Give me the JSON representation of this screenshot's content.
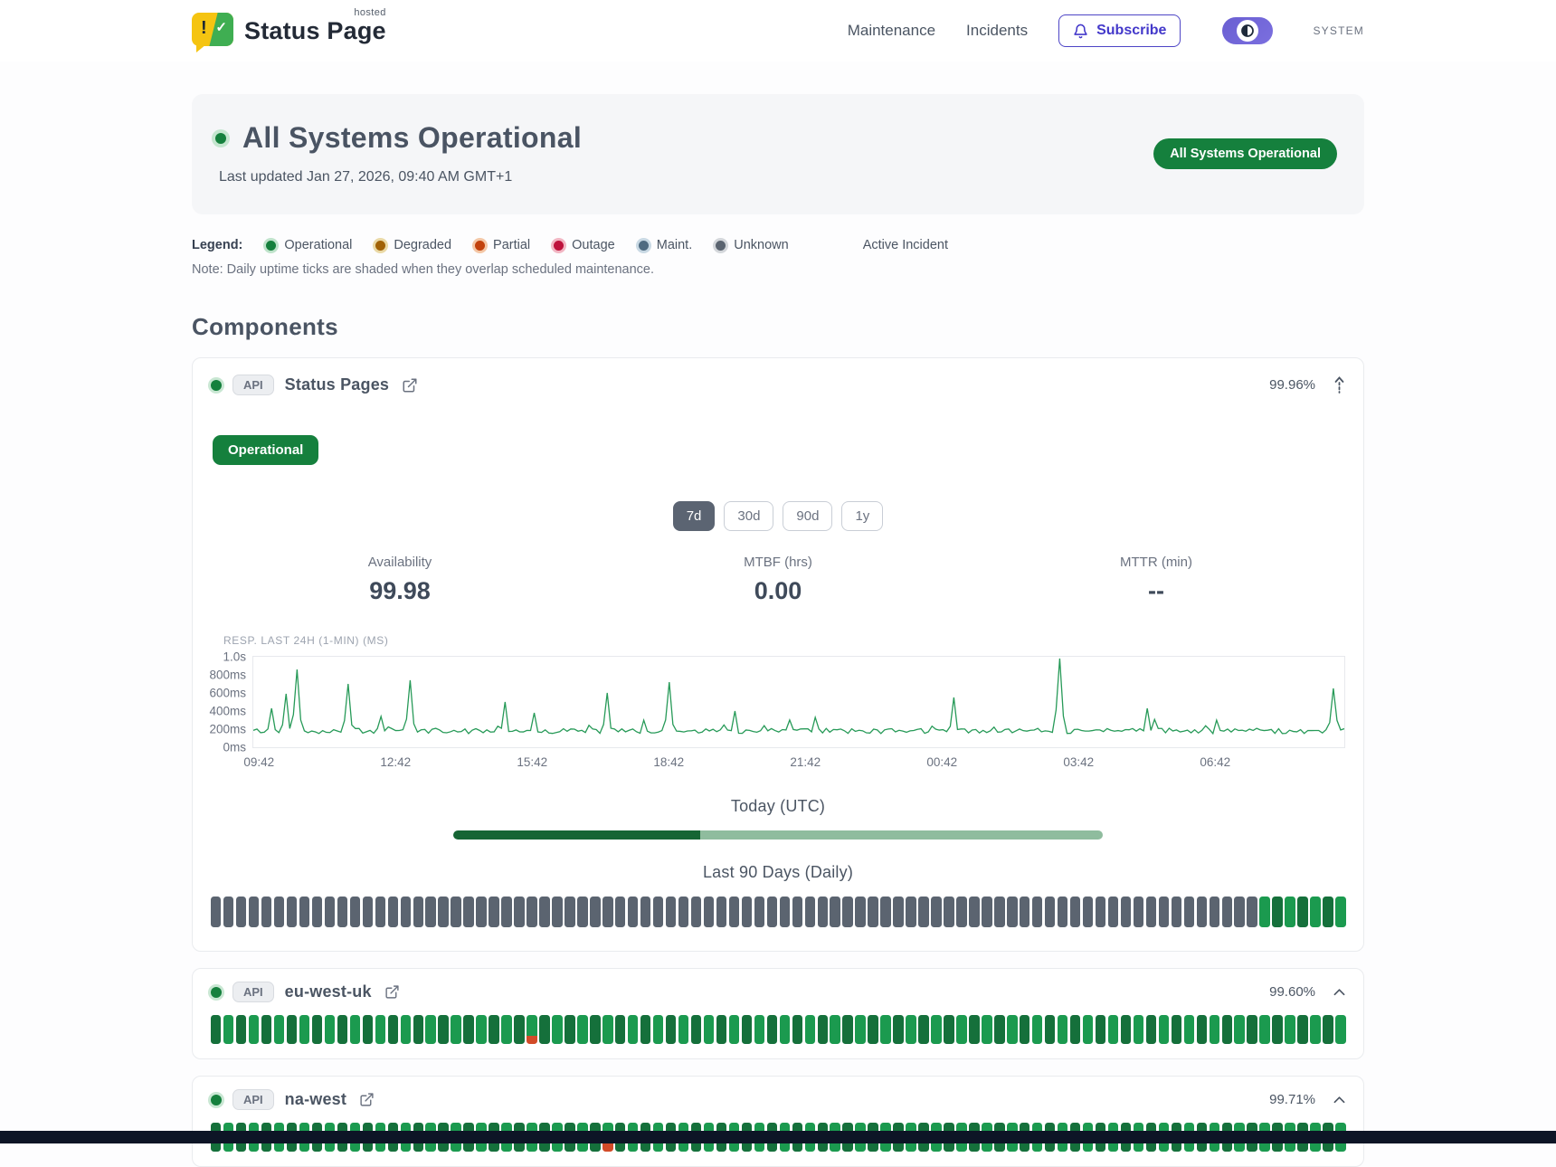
{
  "header": {
    "brand": "Status Page",
    "brand_superscript": "hosted",
    "nav_items": [
      "Maintenance",
      "Incidents"
    ],
    "subscribe_label": "Subscribe",
    "theme_toggle_label": "SYSTEM"
  },
  "hero": {
    "title": "All Systems Operational",
    "last_updated": "Last updated Jan 27, 2026, 09:40 AM GMT+1",
    "status_badge": "All Systems Operational"
  },
  "legend": {
    "label": "Legend:",
    "items": [
      {
        "name": "Operational",
        "color": "#15803d",
        "ring": "#bfe3cb"
      },
      {
        "name": "Degraded",
        "color": "#a16207",
        "ring": "#ead9a6"
      },
      {
        "name": "Partial",
        "color": "#c2410c",
        "ring": "#f4c7a6"
      },
      {
        "name": "Outage",
        "color": "#be123c",
        "ring": "#f2b6c3"
      },
      {
        "name": "Maint.",
        "color": "#4f6b81",
        "ring": "#c9d9e4"
      },
      {
        "name": "Unknown",
        "color": "#5b6470",
        "ring": "#d4d7db"
      }
    ],
    "active_incident": "Active Incident",
    "note": "Note: Daily uptime ticks are shaded when they overlap scheduled maintenance."
  },
  "components_title": "Components",
  "colors": {
    "tick_unknown": "#5b6470",
    "tick_operational_dark": "#15703b",
    "tick_operational": "#1b9a4f",
    "tick_partial_bottom": "#d24b28",
    "today_done": "#166534",
    "today_remaining": "#8fbc9e",
    "chart_line": "#279a58",
    "accent_green": "#15803d"
  },
  "expanded_component": {
    "tag": "API",
    "name": "Status Pages",
    "uptime": "99.96%",
    "status": "Operational",
    "range_options": [
      "7d",
      "30d",
      "90d",
      "1y"
    ],
    "selected_range": "7d",
    "stats": [
      {
        "label": "Availability",
        "value": "99.98"
      },
      {
        "label": "MTBF (hrs)",
        "value": "0.00"
      },
      {
        "label": "MTTR (min)",
        "value": "--"
      }
    ],
    "today_label": "Today (UTC)",
    "today_progress_pct": 38,
    "history_label": "Last 90 Days (Daily)",
    "history_ticks": {
      "total": 90,
      "segments": [
        {
          "status": "unknown",
          "count": 83
        },
        {
          "status": "operational",
          "count": 7
        }
      ]
    }
  },
  "chart_data": {
    "type": "line",
    "title": "RESP. LAST 24H (1-MIN) (MS)",
    "x_tick_labels": [
      "09:42",
      "12:42",
      "15:42",
      "18:42",
      "21:42",
      "00:42",
      "03:42",
      "06:42"
    ],
    "y_tick_labels": [
      "1.0s",
      "800ms",
      "600ms",
      "400ms",
      "200ms",
      "0ms"
    ],
    "y_tick_values_ms": [
      1000,
      800,
      600,
      400,
      200,
      0
    ],
    "y_range_ms": [
      0,
      1000
    ],
    "baseline_ms": 150,
    "noise_ms": 60,
    "spikes": [
      {
        "x": 0.017,
        "ms": 430
      },
      {
        "x": 0.031,
        "ms": 590
      },
      {
        "x": 0.041,
        "ms": 860
      },
      {
        "x": 0.087,
        "ms": 700
      },
      {
        "x": 0.116,
        "ms": 340
      },
      {
        "x": 0.143,
        "ms": 740
      },
      {
        "x": 0.23,
        "ms": 500
      },
      {
        "x": 0.256,
        "ms": 380
      },
      {
        "x": 0.325,
        "ms": 600
      },
      {
        "x": 0.382,
        "ms": 720
      },
      {
        "x": 0.442,
        "ms": 400
      },
      {
        "x": 0.515,
        "ms": 330
      },
      {
        "x": 0.642,
        "ms": 550
      },
      {
        "x": 0.739,
        "ms": 980
      },
      {
        "x": 0.82,
        "ms": 430
      },
      {
        "x": 0.882,
        "ms": 300
      },
      {
        "x": 0.99,
        "ms": 650
      }
    ]
  },
  "collapsed_components": [
    {
      "tag": "API",
      "name": "eu-west-uk",
      "uptime": "99.60%",
      "ticks": {
        "total": 90,
        "segments": [
          {
            "status": "operational",
            "count": 25
          },
          {
            "status": "partial_day",
            "count": 1
          },
          {
            "status": "operational",
            "count": 64
          }
        ]
      }
    },
    {
      "tag": "API",
      "name": "na-west",
      "uptime": "99.71%",
      "ticks": {
        "total": 90,
        "segments": [
          {
            "status": "operational",
            "count": 31
          },
          {
            "status": "partial_day",
            "count": 1
          },
          {
            "status": "operational",
            "count": 58
          }
        ]
      }
    }
  ]
}
